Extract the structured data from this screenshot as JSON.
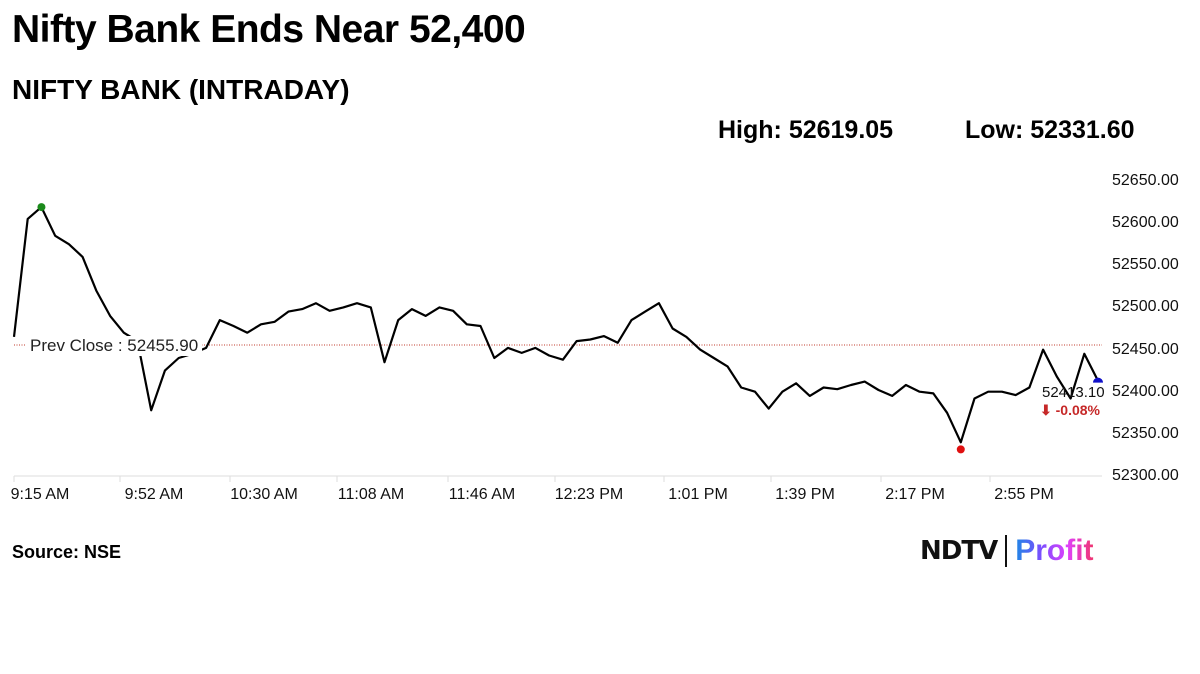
{
  "header": {
    "title": "Nifty Bank Ends Near 52,400",
    "subtitle": "NIFTY BANK (INTRADAY)",
    "high_label": "High: 52619.05",
    "low_label": "Low: 52331.60"
  },
  "annotations": {
    "prev_close": "Prev Close : 52455.90",
    "last_value": "52413.10",
    "change": "⬇ -0.08%"
  },
  "footer": {
    "source": "Source: NSE",
    "logo_ndtv": "NDTV",
    "logo_profit": "Profit"
  },
  "colors": {
    "line": "#000000",
    "prev_close_line": "#c0392b",
    "high_marker": "#1b8a1b",
    "low_marker": "#e01010",
    "last_marker": "#1010c8",
    "change_negative": "#c62828"
  },
  "chart_data": {
    "type": "line",
    "title": "NIFTY BANK (INTRADAY)",
    "xlabel": "",
    "ylabel": "",
    "ylim": [
      52300,
      52650
    ],
    "y_ticks": [
      "52650.00",
      "52600.00",
      "52550.00",
      "52500.00",
      "52450.00",
      "52400.00",
      "52350.00",
      "52300.00"
    ],
    "x_ticks": [
      "9:15 AM",
      "9:52 AM",
      "10:30 AM",
      "11:08 AM",
      "11:46 AM",
      "12:23 PM",
      "1:01 PM",
      "1:39 PM",
      "2:17 PM",
      "2:55 PM"
    ],
    "grid": false,
    "legend": "none",
    "prev_close": 52455.9,
    "high": 52619.05,
    "low": 52331.6,
    "close": 52413.1,
    "change_pct": -0.08,
    "x": [
      "9:15",
      "9:18",
      "9:22",
      "9:26",
      "9:30",
      "9:34",
      "9:38",
      "9:42",
      "9:46",
      "9:50",
      "9:54",
      "9:58",
      "10:02",
      "10:06",
      "10:10",
      "10:14",
      "10:18",
      "10:22",
      "10:26",
      "10:30",
      "10:35",
      "10:40",
      "10:45",
      "10:50",
      "10:55",
      "11:00",
      "11:05",
      "11:10",
      "11:15",
      "11:20",
      "11:25",
      "11:30",
      "11:35",
      "11:40",
      "11:45",
      "11:50",
      "11:55",
      "12:00",
      "12:05",
      "12:10",
      "12:15",
      "12:20",
      "12:25",
      "12:30",
      "12:35",
      "12:40",
      "12:45",
      "12:50",
      "12:55",
      "13:00",
      "13:05",
      "13:10",
      "13:15",
      "13:20",
      "13:25",
      "13:30",
      "13:35",
      "13:40",
      "13:45",
      "13:50",
      "13:55",
      "14:00",
      "14:05",
      "14:10",
      "14:15",
      "14:20",
      "14:25",
      "14:30",
      "14:35",
      "14:40",
      "14:45",
      "14:50",
      "14:55",
      "15:00",
      "15:05",
      "15:10",
      "15:15",
      "15:20",
      "15:25",
      "15:29"
    ],
    "values": [
      52465,
      52605,
      52619,
      52585,
      52575,
      52560,
      52520,
      52490,
      52470,
      52460,
      52378,
      52425,
      52440,
      52445,
      52452,
      52485,
      52478,
      52470,
      52480,
      52483,
      52495,
      52498,
      52505,
      52496,
      52500,
      52505,
      52500,
      52435,
      52485,
      52498,
      52490,
      52500,
      52496,
      52480,
      52478,
      52440,
      52452,
      52446,
      52452,
      52443,
      52438,
      52460,
      52462,
      52466,
      52458,
      52485,
      52495,
      52505,
      52475,
      52465,
      52450,
      52440,
      52430,
      52405,
      52400,
      52380,
      52400,
      52410,
      52395,
      52405,
      52403,
      52408,
      52412,
      52402,
      52395,
      52408,
      52400,
      52398,
      52375,
      52340,
      52392,
      52400,
      52400,
      52396,
      52405,
      52450,
      52418,
      52392,
      52445,
      52413
    ]
  }
}
